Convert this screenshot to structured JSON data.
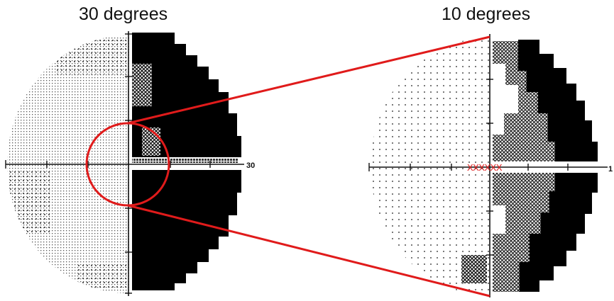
{
  "left_plot": {
    "title": "30 degrees",
    "axis_label": "30"
  },
  "right_plot": {
    "title": "10 degrees",
    "axis_label": "1",
    "center_marks": "XXXXXX"
  },
  "colors": {
    "defect": "#000000",
    "highlight": "#e01b1b",
    "stipple": "#1a1a1a"
  }
}
